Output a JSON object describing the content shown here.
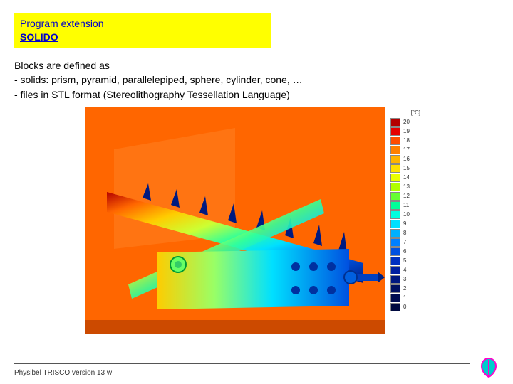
{
  "header": {
    "title": "Program extension",
    "subtitle": "SOLIDO",
    "bg_color": "#ffff00",
    "text_color": "#0000cc"
  },
  "body": {
    "line1": "Blocks are defined as",
    "line2": "- solids: prism, pyramid, parallelepiped, sphere, cylinder, cone, …",
    "line3": "- files in STL format (Stereolithography Tessellation Language)",
    "fontsize": 14,
    "color": "#000000"
  },
  "figure": {
    "background_color": "#ff6600",
    "legend": {
      "unit": "[°C]",
      "items": [
        {
          "value": "20",
          "color": "#b30000"
        },
        {
          "value": "19",
          "color": "#e60000"
        },
        {
          "value": "18",
          "color": "#ff4d00"
        },
        {
          "value": "17",
          "color": "#ff8000"
        },
        {
          "value": "16",
          "color": "#ffb300"
        },
        {
          "value": "15",
          "color": "#ffe000"
        },
        {
          "value": "14",
          "color": "#eaff00"
        },
        {
          "value": "13",
          "color": "#b0ff00"
        },
        {
          "value": "12",
          "color": "#66ff33"
        },
        {
          "value": "11",
          "color": "#00ff99"
        },
        {
          "value": "10",
          "color": "#00ffe0"
        },
        {
          "value": "9",
          "color": "#00e0ff"
        },
        {
          "value": "8",
          "color": "#00b0ff"
        },
        {
          "value": "7",
          "color": "#0080ff"
        },
        {
          "value": "6",
          "color": "#0050e0"
        },
        {
          "value": "5",
          "color": "#0030c0"
        },
        {
          "value": "4",
          "color": "#0020a0"
        },
        {
          "value": "3",
          "color": "#001880"
        },
        {
          "value": "2",
          "color": "#001060"
        },
        {
          "value": "1",
          "color": "#000d50"
        },
        {
          "value": "0",
          "color": "#000a40"
        }
      ]
    }
  },
  "footer": {
    "text": "Physibel TRISCO version 13 w",
    "line_color": "#555555"
  },
  "logo": {
    "stroke": "#ff00cc",
    "fill": "#00cccc"
  }
}
